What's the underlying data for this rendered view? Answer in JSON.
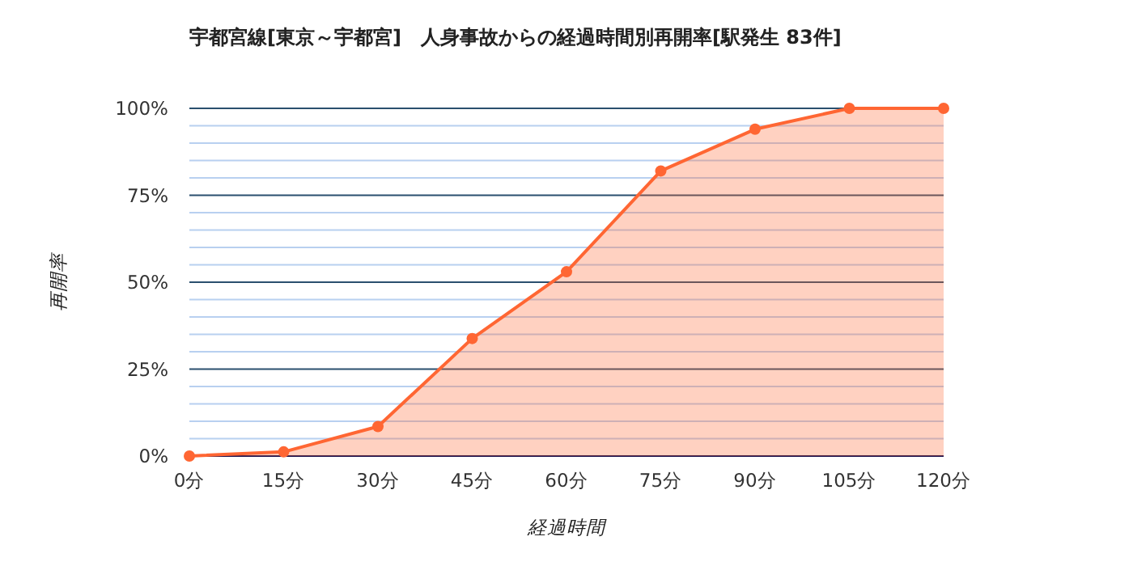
{
  "chart_data": {
    "type": "area",
    "title": "宇都宮線[東京～宇都宮]　人身事故からの経過時間別再開率[駅発生 83件]",
    "xlabel": "経過時間",
    "ylabel": "再開率",
    "categories": [
      "0分",
      "15分",
      "30分",
      "45分",
      "60分",
      "75分",
      "90分",
      "105分",
      "120分"
    ],
    "series": [
      {
        "color": "#ff6633",
        "values": [
          0,
          1.2,
          8.5,
          33.8,
          53,
          82,
          94,
          100,
          100
        ]
      }
    ],
    "ylim": [
      0,
      100
    ],
    "yticks": [
      {
        "value": 0,
        "label": "0%"
      },
      {
        "value": 5,
        "label": null
      },
      {
        "value": 10,
        "label": null
      },
      {
        "value": 15,
        "label": null
      },
      {
        "value": 20,
        "label": null
      },
      {
        "value": 25,
        "label": "25%"
      },
      {
        "value": 30,
        "label": null
      },
      {
        "value": 35,
        "label": null
      },
      {
        "value": 40,
        "label": null
      },
      {
        "value": 45,
        "label": null
      },
      {
        "value": 50,
        "label": "50%"
      },
      {
        "value": 55,
        "label": null
      },
      {
        "value": 60,
        "label": null
      },
      {
        "value": 65,
        "label": null
      },
      {
        "value": 70,
        "label": null
      },
      {
        "value": 75,
        "label": "75%"
      },
      {
        "value": 80,
        "label": null
      },
      {
        "value": 85,
        "label": null
      },
      {
        "value": 90,
        "label": null
      },
      {
        "value": 95,
        "label": null
      },
      {
        "value": 100,
        "label": "100%"
      }
    ],
    "grid": "y",
    "marker": "circle"
  }
}
